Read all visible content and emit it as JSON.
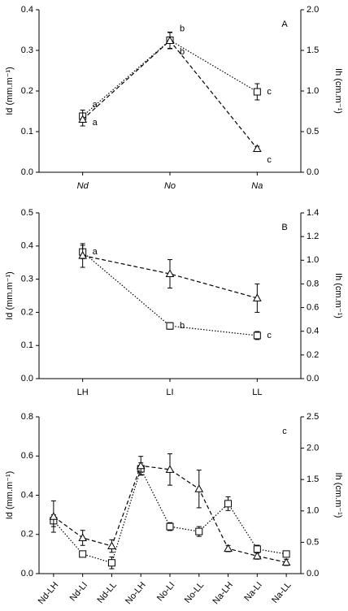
{
  "chart_data": [
    {
      "type": "line",
      "panel_label": "A",
      "categories": [
        "Nd",
        "No",
        "Na"
      ],
      "category_style": "italic",
      "ylabel": "Id (mm.m⁻¹)",
      "y2label": "Ih (cm.m⁻¹)",
      "ylim": [
        0,
        0.4
      ],
      "yticks": [
        {
          "value": 0,
          "label": "0.0"
        },
        0.1,
        0.2,
        0.3,
        0.4
      ],
      "y2lim": [
        0,
        2
      ],
      "y2ticks": [
        {
          "value": 0,
          "label": "0.0"
        },
        0.5,
        {
          "value": 1,
          "label": "1.0"
        },
        1.5,
        {
          "value": 2,
          "label": "2.0"
        }
      ],
      "series": [
        {
          "color": "#000000",
          "marker": "square",
          "line_style": "dotted",
          "values": [
            0.138,
            0.325,
            0.198
          ],
          "errors": [
            0.015,
            0.02,
            0.02
          ],
          "point_labels": [
            "a",
            "b",
            "c"
          ]
        },
        {
          "color": "#000000",
          "marker": "triangle",
          "line_style": "dashed",
          "axis": "y2",
          "values": [
            0.65,
            1.62,
            0.29
          ],
          "errors": [
            0.08,
            0.1,
            0.03
          ],
          "point_labels": [
            "a",
            "b",
            "c"
          ]
        }
      ]
    },
    {
      "type": "line",
      "panel_label": "B",
      "categories": [
        "LH",
        "LI",
        "LL"
      ],
      "category_style": "normal",
      "ylabel": "Id (mm.m⁻¹)",
      "y2label": "Ih (cm.m⁻¹)",
      "ylim": [
        0,
        0.5
      ],
      "yticks": [
        {
          "value": 0,
          "label": "0.0"
        },
        0.1,
        0.2,
        0.3,
        0.4,
        0.5
      ],
      "y2lim": [
        0,
        1.4
      ],
      "y2ticks": [
        {
          "value": 0,
          "label": "0.0"
        },
        0.2,
        0.4,
        0.6,
        0.8,
        {
          "value": 1,
          "label": "1.0"
        },
        1.2,
        1.4
      ],
      "series": [
        {
          "color": "#000000",
          "marker": "square",
          "line_style": "dotted",
          "values": [
            0.382,
            0.159,
            0.13
          ],
          "errors": [
            0.02,
            0.01,
            0.012
          ],
          "point_labels": [
            "a",
            "b",
            "c"
          ]
        },
        {
          "color": "#000000",
          "marker": "triangle",
          "line_style": "dashed",
          "axis": "y2",
          "values": [
            1.04,
            0.885,
            0.68
          ],
          "errors": [
            0.1,
            0.12,
            0.12
          ]
        }
      ]
    },
    {
      "type": "line",
      "panel_label": "c",
      "categories": [
        "Nd-LH",
        "Nd-LI",
        "Nd-LL",
        "No-LH",
        "No-LI",
        "No-LL",
        "Na-LH",
        "Na-LI",
        "Na-LL"
      ],
      "category_style": "rotated",
      "ylabel": "Id (mm.m⁻¹)",
      "y2label": "Ih (cm.m⁻¹)",
      "ylim": [
        0,
        0.8
      ],
      "yticks": [
        {
          "value": 0,
          "label": "0.0"
        },
        0.2,
        0.4,
        0.6,
        0.8
      ],
      "y2lim": [
        0,
        2.5
      ],
      "y2ticks": [
        {
          "value": 0,
          "label": "0.0"
        },
        0.5,
        {
          "value": 1,
          "label": "1.0"
        },
        1.5,
        {
          "value": 2,
          "label": "2.0"
        },
        2.5
      ],
      "series": [
        {
          "color": "#000000",
          "marker": "square",
          "line_style": "dotted",
          "values": [
            0.27,
            0.1,
            0.055,
            0.535,
            0.24,
            0.215,
            0.357,
            0.125,
            0.1
          ],
          "errors": [
            0.03,
            0.01,
            0.03,
            0.03,
            0.02,
            0.025,
            0.035,
            0.02,
            0.015
          ]
        },
        {
          "color": "#000000",
          "marker": "triangle",
          "line_style": "dashed",
          "axis": "y2",
          "values": [
            0.91,
            0.57,
            0.44,
            1.72,
            1.66,
            1.35,
            0.4,
            0.28,
            0.18
          ],
          "errors": [
            0.25,
            0.12,
            0.1,
            0.15,
            0.25,
            0.3,
            0.05,
            0.05,
            0.05
          ]
        }
      ]
    }
  ]
}
